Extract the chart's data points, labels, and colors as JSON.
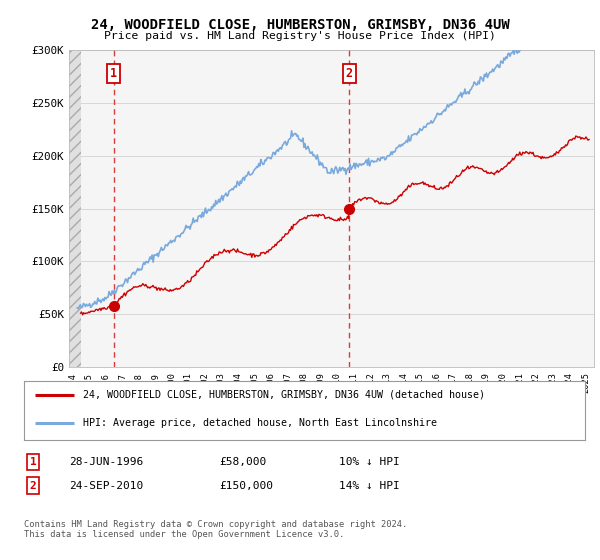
{
  "title": "24, WOODFIELD CLOSE, HUMBERSTON, GRIMSBY, DN36 4UW",
  "subtitle": "Price paid vs. HM Land Registry's House Price Index (HPI)",
  "bg_color": "#ffffff",
  "red_line_color": "#cc0000",
  "blue_line_color": "#7aaadd",
  "point1_year": 1996.49,
  "point1_value": 58000,
  "point2_year": 2010.73,
  "point2_value": 150000,
  "ylim": [
    0,
    300000
  ],
  "yticks": [
    0,
    50000,
    100000,
    150000,
    200000,
    250000,
    300000
  ],
  "ytick_labels": [
    "£0",
    "£50K",
    "£100K",
    "£150K",
    "£200K",
    "£250K",
    "£300K"
  ],
  "xlim_start": 1993.8,
  "xlim_end": 2025.5,
  "legend_red": "24, WOODFIELD CLOSE, HUMBERSTON, GRIMSBY, DN36 4UW (detached house)",
  "legend_blue": "HPI: Average price, detached house, North East Lincolnshire",
  "row1_label": "1",
  "row1_date": "28-JUN-1996",
  "row1_price": "£58,000",
  "row1_hpi": "10% ↓ HPI",
  "row2_label": "2",
  "row2_date": "24-SEP-2010",
  "row2_price": "£150,000",
  "row2_hpi": "14% ↓ HPI",
  "copyright_text": "Contains HM Land Registry data © Crown copyright and database right 2024.\nThis data is licensed under the Open Government Licence v3.0."
}
